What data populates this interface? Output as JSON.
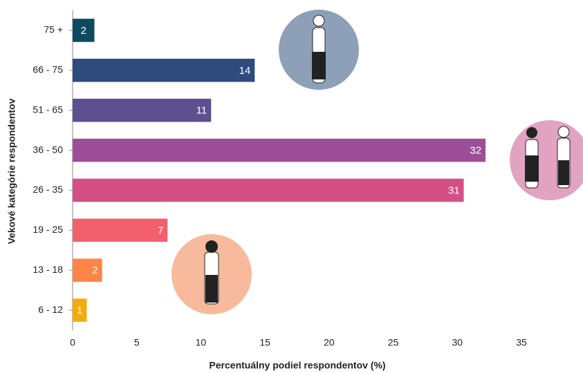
{
  "chart_data": {
    "type": "bar",
    "orientation": "horizontal",
    "categories": [
      "75 +",
      "66 - 75",
      "51 - 65",
      "36 - 50",
      "26 - 35",
      "19 - 25",
      "13 - 18",
      "6 - 12"
    ],
    "values": [
      1.7,
      14.2,
      10.8,
      32.2,
      30.5,
      7.4,
      2.3,
      1.1
    ],
    "value_labels": [
      "2",
      "14",
      "11",
      "32",
      "31",
      "7",
      "2",
      "1"
    ],
    "colors": [
      "#0e4a5f",
      "#2f4b7e",
      "#5d4f90",
      "#9c4f96",
      "#d44f86",
      "#f25f6d",
      "#ff8448",
      "#f5aa10"
    ],
    "xlim": [
      0,
      35
    ],
    "xticks": [
      0,
      5,
      10,
      15,
      20,
      25,
      30,
      35
    ],
    "xlabel": "Percentuálny podiel respondentov (%)",
    "ylabel": "Vekové kategórie respondentov",
    "grid": false
  }
}
